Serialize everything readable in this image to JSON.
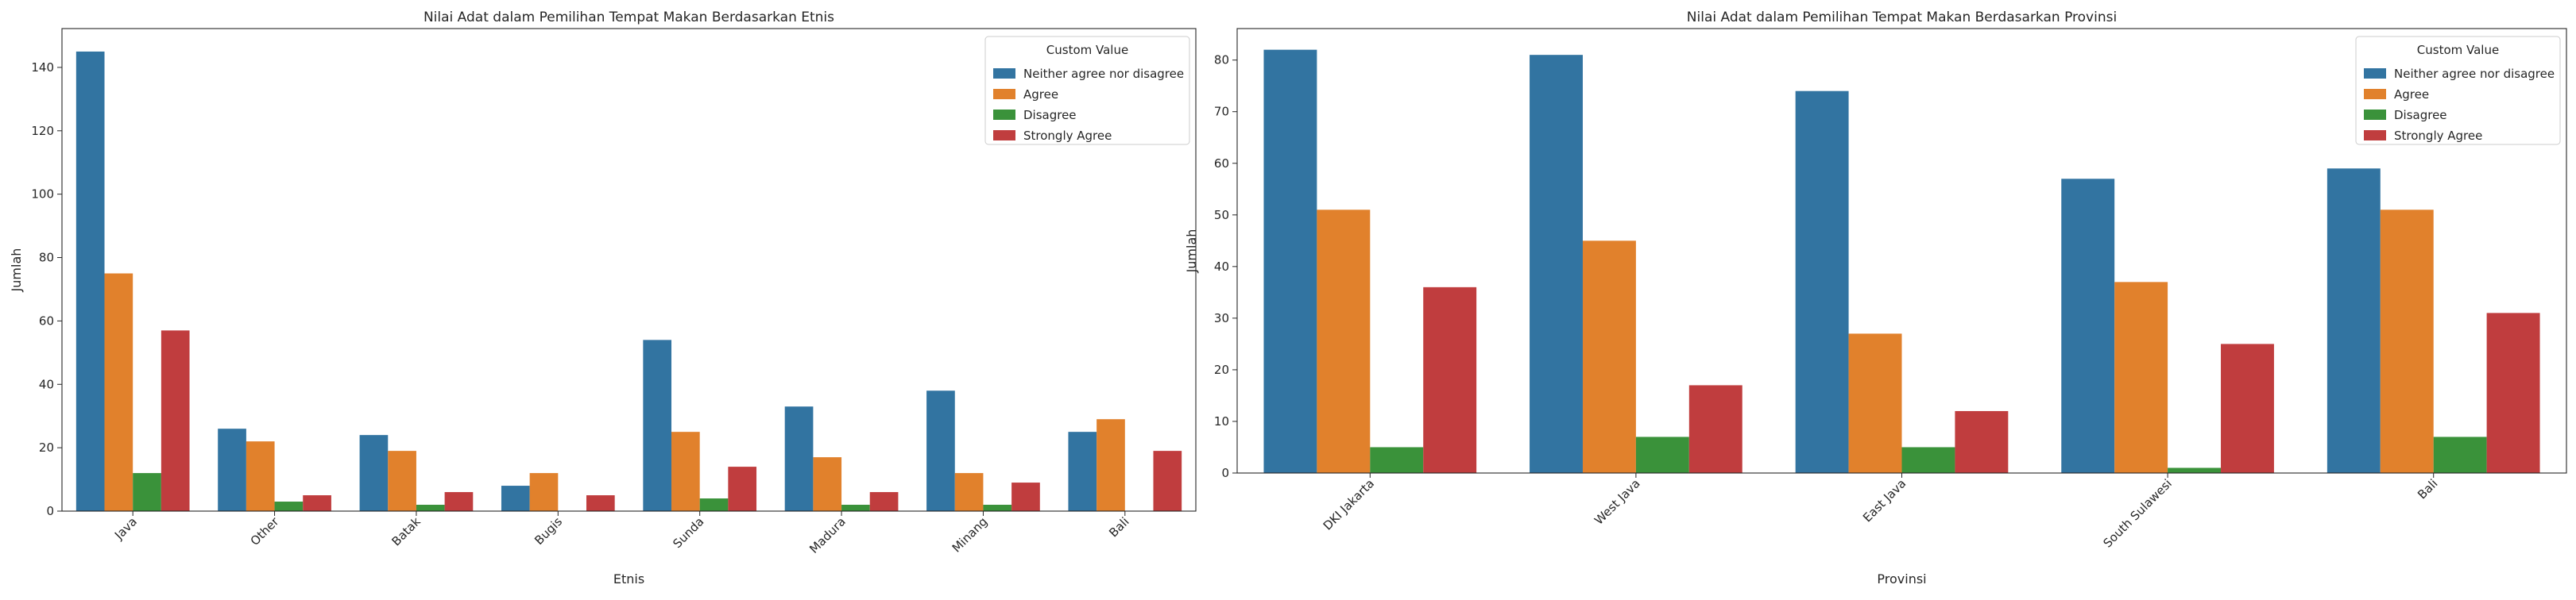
{
  "chart_data": [
    {
      "type": "bar",
      "title": "Nilai Adat dalam Pemilihan Tempat Makan Berdasarkan Etnis",
      "xlabel": "Etnis",
      "ylabel": "Jumlah",
      "ylim": [
        0,
        152.25
      ],
      "yticks": [
        0,
        20,
        40,
        60,
        80,
        100,
        120,
        140
      ],
      "grid": false,
      "legend_title": "Custom Value",
      "legend_position": "top-right",
      "categories": [
        "Java",
        "Other",
        "Batak",
        "Bugis",
        "Sunda",
        "Madura",
        "Minang",
        "Bali"
      ],
      "series": [
        {
          "name": "Neither agree nor disagree",
          "color": "#3274a1",
          "values": [
            145,
            26,
            24,
            8,
            54,
            33,
            38,
            25
          ]
        },
        {
          "name": "Agree",
          "color": "#e1812c",
          "values": [
            75,
            22,
            19,
            12,
            25,
            17,
            12,
            29
          ]
        },
        {
          "name": "Disagree",
          "color": "#3a923a",
          "values": [
            12,
            3,
            2,
            0,
            4,
            2,
            2,
            0
          ]
        },
        {
          "name": "Strongly Agree",
          "color": "#c03d3e",
          "values": [
            57,
            5,
            6,
            5,
            14,
            6,
            9,
            19
          ]
        }
      ]
    },
    {
      "type": "bar",
      "title": "Nilai Adat dalam Pemilihan Tempat Makan Berdasarkan Provinsi",
      "xlabel": "Provinsi",
      "ylabel": "Jumlah",
      "ylim": [
        0,
        86.1
      ],
      "yticks": [
        0,
        10,
        20,
        30,
        40,
        50,
        60,
        70,
        80
      ],
      "grid": false,
      "legend_title": "Custom Value",
      "legend_position": "top-right",
      "categories": [
        "DKI Jakarta",
        "West Java",
        "East Java",
        "South Sulawesi",
        "Bali"
      ],
      "series": [
        {
          "name": "Neither agree nor disagree",
          "color": "#3274a1",
          "values": [
            82,
            81,
            74,
            57,
            59
          ]
        },
        {
          "name": "Agree",
          "color": "#e1812c",
          "values": [
            51,
            45,
            27,
            37,
            51
          ]
        },
        {
          "name": "Disagree",
          "color": "#3a923a",
          "values": [
            5,
            7,
            5,
            1,
            7
          ]
        },
        {
          "name": "Strongly Agree",
          "color": "#c03d3e",
          "values": [
            36,
            17,
            12,
            25,
            31
          ]
        }
      ]
    }
  ]
}
